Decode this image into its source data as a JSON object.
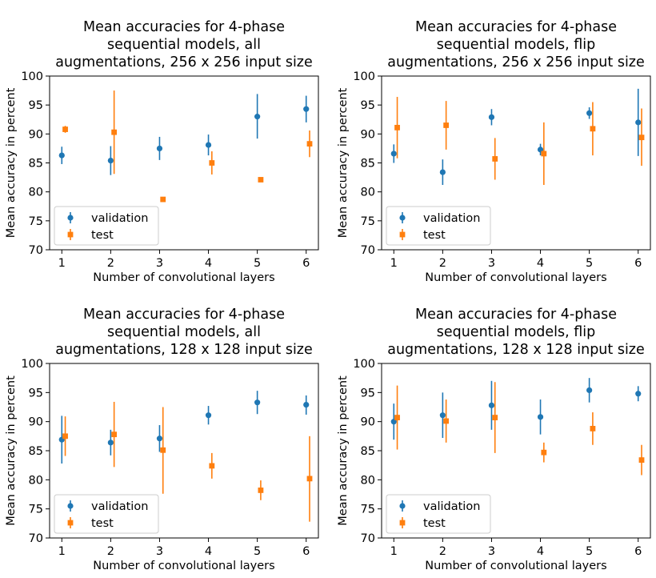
{
  "figure": {
    "colors": {
      "validation": "#1f77b4",
      "test": "#ff7f0e"
    }
  },
  "chart_data": [
    {
      "type": "scatter",
      "title": [
        "Mean accuracies for 4-phase",
        "sequential models, all",
        "augmentations, 256 x 256 input size"
      ],
      "xlabel": "Number of convolutional layers",
      "ylabel": "Mean accuracy in percent",
      "xlim": [
        0.75,
        6.25
      ],
      "ylim": [
        70,
        100
      ],
      "xticks": [
        1,
        2,
        3,
        4,
        5,
        6
      ],
      "yticks": [
        70,
        75,
        80,
        85,
        90,
        95,
        100
      ],
      "legend": "lower-left",
      "series": [
        {
          "name": "validation",
          "marker": "circle",
          "x": [
            1,
            2,
            3,
            4,
            5,
            6
          ],
          "values": [
            86.3,
            85.4,
            87.5,
            88.1,
            93.0,
            94.3
          ],
          "err_low": [
            1.5,
            2.5,
            2.0,
            1.8,
            3.8,
            2.3
          ],
          "err_high": [
            1.5,
            2.5,
            2.0,
            1.8,
            3.9,
            2.3
          ]
        },
        {
          "name": "test",
          "marker": "square",
          "x": [
            1.07,
            2.07,
            3.07,
            4.07,
            5.07,
            6.07
          ],
          "values": [
            90.8,
            90.3,
            78.7,
            85.0,
            82.1,
            88.3
          ],
          "err_low": [
            0.6,
            7.2,
            0.3,
            2.0,
            0.2,
            2.3
          ],
          "err_high": [
            0.6,
            7.2,
            0.3,
            2.0,
            0.2,
            2.3
          ]
        }
      ]
    },
    {
      "type": "scatter",
      "title": [
        "Mean accuracies for 4-phase",
        "sequential models, flip",
        "augmentations, 256 x 256 input size"
      ],
      "xlabel": "Number of convolutional layers",
      "ylabel": "Mean accuracy in percent",
      "xlim": [
        0.75,
        6.25
      ],
      "ylim": [
        70,
        100
      ],
      "xticks": [
        1,
        2,
        3,
        4,
        5,
        6
      ],
      "yticks": [
        70,
        75,
        80,
        85,
        90,
        95,
        100
      ],
      "legend": "lower-left",
      "series": [
        {
          "name": "validation",
          "marker": "circle",
          "x": [
            1,
            2,
            3,
            4,
            5,
            6
          ],
          "values": [
            86.6,
            83.4,
            92.9,
            87.3,
            93.6,
            92.0
          ],
          "err_low": [
            1.6,
            2.2,
            1.4,
            1.0,
            1.0,
            5.8
          ],
          "err_high": [
            1.6,
            2.2,
            1.4,
            1.0,
            1.0,
            5.8
          ]
        },
        {
          "name": "test",
          "marker": "square",
          "x": [
            1.07,
            2.07,
            3.07,
            4.07,
            5.07,
            6.07
          ],
          "values": [
            91.1,
            91.5,
            85.7,
            86.6,
            90.9,
            89.4
          ],
          "err_low": [
            5.3,
            4.2,
            3.6,
            5.4,
            4.6,
            4.9
          ],
          "err_high": [
            5.3,
            4.2,
            3.6,
            5.4,
            4.6,
            5.0
          ]
        }
      ]
    },
    {
      "type": "scatter",
      "title": [
        "Mean accuracies for 4-phase",
        "sequential models, all",
        "augmentations, 128 x 128 input size"
      ],
      "xlabel": "Number of convolutional layers",
      "ylabel": "Mean accuracy in percent",
      "xlim": [
        0.75,
        6.25
      ],
      "ylim": [
        70,
        100
      ],
      "xticks": [
        1,
        2,
        3,
        4,
        5,
        6
      ],
      "yticks": [
        70,
        75,
        80,
        85,
        90,
        95,
        100
      ],
      "legend": "lower-left",
      "series": [
        {
          "name": "validation",
          "marker": "circle",
          "x": [
            1,
            2,
            3,
            4,
            5,
            6
          ],
          "values": [
            86.9,
            86.4,
            87.1,
            91.1,
            93.3,
            92.9
          ],
          "err_low": [
            4.1,
            2.2,
            2.3,
            1.6,
            2.0,
            1.7
          ],
          "err_high": [
            4.1,
            2.2,
            2.3,
            1.6,
            2.0,
            1.6
          ]
        },
        {
          "name": "test",
          "marker": "square",
          "x": [
            1.07,
            2.07,
            3.07,
            4.07,
            5.07,
            6.07
          ],
          "values": [
            87.5,
            87.8,
            85.1,
            82.4,
            78.2,
            80.2
          ],
          "err_low": [
            3.4,
            5.6,
            7.5,
            2.2,
            1.7,
            7.4
          ],
          "err_high": [
            3.4,
            5.6,
            7.4,
            2.2,
            1.7,
            7.3
          ]
        }
      ]
    },
    {
      "type": "scatter",
      "title": [
        "Mean accuracies for 4-phase",
        "sequential models, flip",
        "augmentations, 128 x 128 input size"
      ],
      "xlabel": "Number of convolutional layers",
      "ylabel": "Mean accuracy in percent",
      "xlim": [
        0.75,
        6.25
      ],
      "ylim": [
        70,
        100
      ],
      "xticks": [
        1,
        2,
        3,
        4,
        5,
        6
      ],
      "yticks": [
        70,
        75,
        80,
        85,
        90,
        95,
        100
      ],
      "legend": "lower-left",
      "series": [
        {
          "name": "validation",
          "marker": "circle",
          "x": [
            1,
            2,
            3,
            4,
            5,
            6
          ],
          "values": [
            90.0,
            91.1,
            92.8,
            90.8,
            95.4,
            94.8
          ],
          "err_low": [
            3.1,
            3.9,
            4.2,
            3.0,
            2.1,
            1.3
          ],
          "err_high": [
            3.1,
            3.9,
            4.2,
            3.0,
            2.1,
            1.3
          ]
        },
        {
          "name": "test",
          "marker": "square",
          "x": [
            1.07,
            2.07,
            3.07,
            4.07,
            5.07,
            6.07
          ],
          "values": [
            90.7,
            90.1,
            90.7,
            84.7,
            88.8,
            83.4
          ],
          "err_low": [
            5.5,
            3.7,
            6.1,
            1.7,
            2.8,
            2.6
          ],
          "err_high": [
            5.5,
            3.7,
            6.1,
            1.7,
            2.8,
            2.6
          ]
        }
      ]
    }
  ]
}
